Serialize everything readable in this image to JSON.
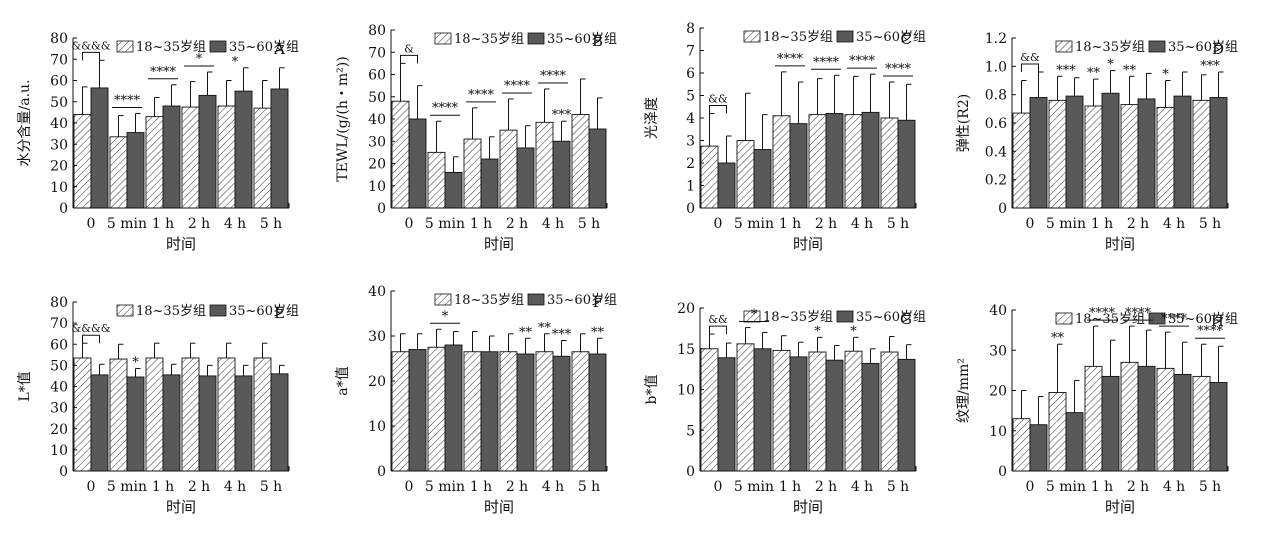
{
  "legend": {
    "young": "18~35岁组",
    "old": "35~60岁组"
  },
  "x_title": "时间",
  "x_categories": [
    "0",
    "5 min",
    "1 h",
    "2 h",
    "4 h",
    "5 h"
  ],
  "colors": {
    "young_fill": "#ffffff",
    "old_fill": "#595959",
    "axis": "#111111",
    "hatch": "#333333"
  },
  "chart_data": [
    {
      "panel": "A",
      "type": "bar",
      "ylabel": "水分含量/a.u.",
      "ylim": [
        0,
        80
      ],
      "yticks": [
        0,
        10,
        20,
        30,
        40,
        50,
        60,
        70,
        80
      ],
      "series": [
        {
          "name": "18~35岁组",
          "values": [
            44,
            33.5,
            43,
            47.5,
            48,
            47
          ],
          "errors": [
            13,
            10,
            9,
            12,
            12,
            13
          ]
        },
        {
          "name": "35~60岁组",
          "values": [
            56.5,
            35.5,
            48,
            53,
            55,
            56
          ],
          "errors": [
            13,
            9,
            10,
            11,
            11,
            10
          ]
        }
      ],
      "annotations": [
        {
          "label": "&&&&",
          "type": "bracket",
          "group": 0
        },
        {
          "label": "****",
          "type": "line",
          "group": 1
        },
        {
          "label": "****",
          "type": "line",
          "group": 2
        },
        {
          "label": "*",
          "type": "line",
          "group": 3
        },
        {
          "label": "*",
          "type": "star",
          "group": 4
        }
      ]
    },
    {
      "panel": "B",
      "type": "bar",
      "ylabel": "TEWL/(g/(h・m²))",
      "ylim": [
        0,
        80
      ],
      "yticks": [
        0,
        10,
        20,
        30,
        40,
        50,
        60,
        70,
        80
      ],
      "series": [
        {
          "name": "18~35岁组",
          "values": [
            48,
            25,
            31,
            35,
            38.5,
            42
          ],
          "errors": [
            17,
            14,
            14,
            14,
            15,
            16
          ]
        },
        {
          "name": "35~60岁组",
          "values": [
            40,
            16,
            22,
            27,
            30,
            35.5
          ],
          "errors": [
            15,
            7,
            10,
            10,
            9,
            14
          ]
        }
      ],
      "annotations": [
        {
          "label": "&",
          "type": "bracket",
          "group": 0
        },
        {
          "label": "****",
          "type": "line",
          "group": 1
        },
        {
          "label": "****",
          "type": "line",
          "group": 2
        },
        {
          "label": "****",
          "type": "line",
          "group": 3
        },
        {
          "label": "****",
          "type": "line",
          "group": 4
        },
        {
          "label": "***",
          "type": "star",
          "group": 4,
          "series": 1
        }
      ]
    },
    {
      "panel": "C",
      "type": "bar",
      "ylabel": "光泽度",
      "ylim": [
        0,
        8
      ],
      "yticks": [
        0,
        1,
        2,
        3,
        4,
        5,
        6,
        7,
        8
      ],
      "series": [
        {
          "name": "18~35岁组",
          "values": [
            2.75,
            3.0,
            4.1,
            4.15,
            4.15,
            4.0
          ],
          "errors": [
            1.45,
            2.1,
            1.95,
            1.6,
            1.7,
            1.6
          ]
        },
        {
          "name": "35~60岁组",
          "values": [
            2.0,
            2.6,
            3.75,
            4.2,
            4.25,
            3.9
          ],
          "errors": [
            1.2,
            1.55,
            1.85,
            1.7,
            1.7,
            1.6
          ]
        }
      ],
      "annotations": [
        {
          "label": "&&",
          "type": "bracket",
          "group": 0
        },
        {
          "label": "****",
          "type": "line",
          "group": 2
        },
        {
          "label": "****",
          "type": "line",
          "group": 3
        },
        {
          "label": "****",
          "type": "line",
          "group": 4
        },
        {
          "label": "****",
          "type": "line",
          "group": 5
        }
      ]
    },
    {
      "panel": "D",
      "type": "bar",
      "ylabel": "弹性(R2)",
      "ylim": [
        0,
        1.2
      ],
      "yticks": [
        0,
        0.2,
        0.4,
        0.6,
        0.8,
        1.0,
        1.2
      ],
      "series": [
        {
          "name": "18~35岁组",
          "values": [
            0.67,
            0.76,
            0.72,
            0.73,
            0.71,
            0.76
          ],
          "errors": [
            0.23,
            0.17,
            0.19,
            0.2,
            0.19,
            0.18
          ]
        },
        {
          "name": "35~60岁组",
          "values": [
            0.78,
            0.79,
            0.81,
            0.77,
            0.79,
            0.78
          ],
          "errors": [
            0.18,
            0.13,
            0.16,
            0.18,
            0.17,
            0.18
          ]
        }
      ],
      "annotations": [
        {
          "label": "&&",
          "type": "bracket",
          "group": 0
        },
        {
          "label": "***",
          "type": "star",
          "group": 1
        },
        {
          "label": "**",
          "type": "star",
          "group": 2,
          "series": 0
        },
        {
          "label": "*",
          "type": "star",
          "group": 2,
          "series": 1
        },
        {
          "label": "**",
          "type": "star",
          "group": 3,
          "series": 0
        },
        {
          "label": "*",
          "type": "star",
          "group": 4,
          "series": 0
        },
        {
          "label": "***",
          "type": "star",
          "group": 5
        }
      ]
    },
    {
      "panel": "E",
      "type": "bar",
      "ylabel": "L*值",
      "ylim": [
        0,
        80
      ],
      "yticks": [
        0,
        10,
        20,
        30,
        40,
        50,
        60,
        70,
        80
      ],
      "series": [
        {
          "name": "18~35岁组",
          "values": [
            53.5,
            53,
            53.5,
            53.5,
            53.5,
            53.5
          ],
          "errors": [
            7,
            7,
            7,
            7,
            7,
            7
          ]
        },
        {
          "name": "35~60岁组",
          "values": [
            45.5,
            44.5,
            45.5,
            45,
            45,
            46
          ],
          "errors": [
            5,
            4,
            5,
            5,
            5,
            4
          ]
        }
      ],
      "annotations": [
        {
          "label": "&&&&",
          "type": "bracket",
          "group": 0
        },
        {
          "label": "*",
          "type": "star",
          "group": 1,
          "series": 1
        }
      ]
    },
    {
      "panel": "F",
      "type": "bar",
      "ylabel": "a*值",
      "ylim": [
        0,
        40
      ],
      "yticks": [
        0,
        10,
        20,
        30,
        40
      ],
      "series": [
        {
          "name": "18~35岁组",
          "values": [
            26.5,
            27.5,
            26.5,
            26.5,
            26.5,
            26.5
          ],
          "errors": [
            4,
            4,
            4.5,
            4,
            4,
            4
          ]
        },
        {
          "name": "35~60岁组",
          "values": [
            27,
            28,
            26.5,
            26,
            25.5,
            26
          ],
          "errors": [
            3.5,
            3,
            3.5,
            3.5,
            3.5,
            3.5
          ]
        }
      ],
      "annotations": [
        {
          "label": "*",
          "type": "line",
          "group": 1
        },
        {
          "label": "**",
          "type": "star",
          "group": 3,
          "series": 1
        },
        {
          "label": "**",
          "type": "star",
          "group": 4,
          "series": 0
        },
        {
          "label": "***",
          "type": "star",
          "group": 4,
          "series": 1
        },
        {
          "label": "**",
          "type": "star",
          "group": 5,
          "series": 1
        }
      ]
    },
    {
      "panel": "G",
      "type": "bar",
      "ylabel": "b*值",
      "ylim": [
        0,
        20
      ],
      "yticks": [
        0,
        5,
        10,
        15,
        20
      ],
      "series": [
        {
          "name": "18~35岁组",
          "values": [
            15,
            15.6,
            14.8,
            14.6,
            14.7,
            14.6
          ],
          "errors": [
            1.8,
            2,
            1.8,
            1.8,
            1.7,
            1.9
          ]
        },
        {
          "name": "35~60岁组",
          "values": [
            13.9,
            15,
            14,
            13.6,
            13.2,
            13.7
          ],
          "errors": [
            1.8,
            2,
            1.8,
            1.8,
            1.8,
            1.8
          ]
        }
      ],
      "annotations": [
        {
          "label": "&&",
          "type": "bracket",
          "group": 0
        },
        {
          "label": "*",
          "type": "line",
          "group": 1
        },
        {
          "label": "*",
          "type": "star",
          "group": 3,
          "series": 0
        },
        {
          "label": "*",
          "type": "star",
          "group": 4,
          "series": 0
        }
      ]
    },
    {
      "panel": "H",
      "type": "bar",
      "ylabel": "纹理/mm²",
      "ylim": [
        0,
        40
      ],
      "yticks": [
        0,
        10,
        20,
        30,
        40
      ],
      "series": [
        {
          "name": "18~35岁组",
          "values": [
            13,
            19.5,
            26,
            27,
            25.5,
            23.5
          ],
          "errors": [
            7,
            12,
            10,
            9,
            9,
            8
          ]
        },
        {
          "name": "35~60岁组",
          "values": [
            11.5,
            14.5,
            23.5,
            26,
            24,
            22
          ],
          "errors": [
            7,
            8,
            9,
            9,
            8,
            9
          ]
        }
      ],
      "annotations": [
        {
          "label": "**",
          "type": "star",
          "group": 1,
          "series": 0
        },
        {
          "label": "****",
          "type": "line",
          "group": 2
        },
        {
          "label": "****",
          "type": "line",
          "group": 3
        },
        {
          "label": "****",
          "type": "line",
          "group": 4
        },
        {
          "label": "****",
          "type": "line",
          "group": 5
        }
      ]
    }
  ]
}
